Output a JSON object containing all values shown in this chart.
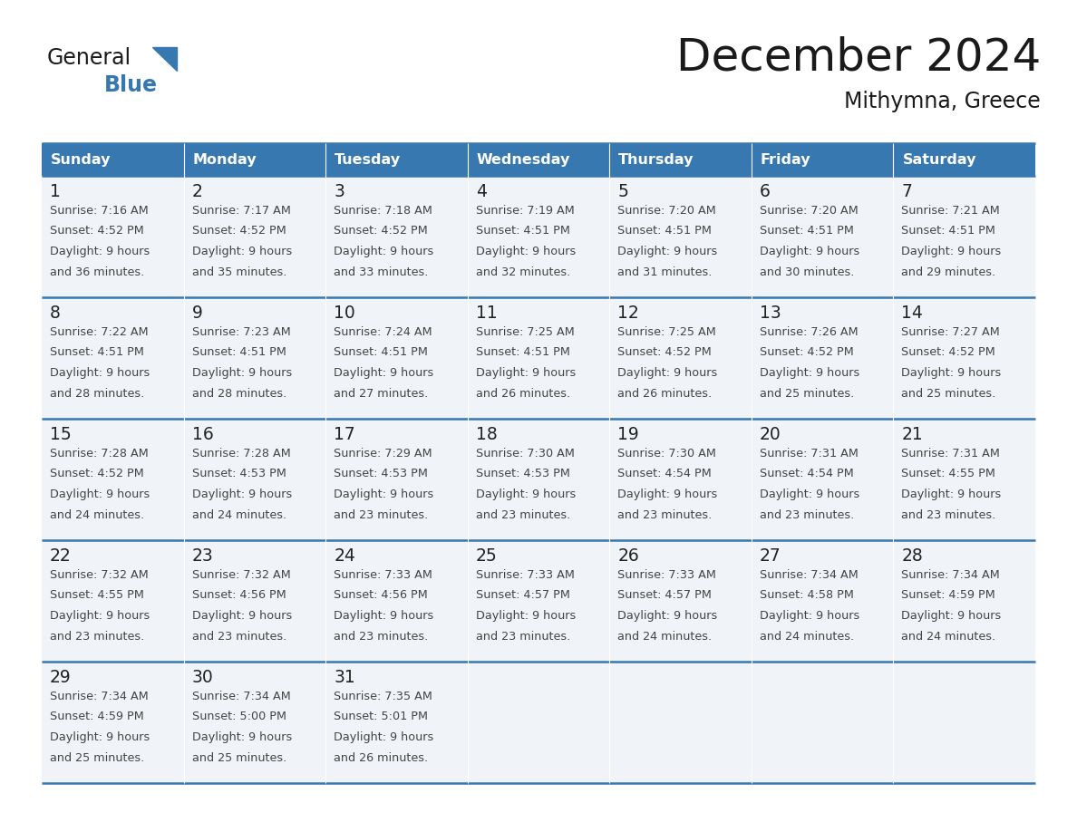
{
  "title": "December 2024",
  "subtitle": "Mithymna, Greece",
  "days_of_week": [
    "Sunday",
    "Monday",
    "Tuesday",
    "Wednesday",
    "Thursday",
    "Friday",
    "Saturday"
  ],
  "header_bg_color": "#3778b0",
  "header_text_color": "#ffffff",
  "cell_bg_color": "#f0f3f7",
  "grid_line_color": "#3778b0",
  "title_color": "#1a1a1a",
  "cell_text_color": "#444444",
  "day_num_color": "#222222",
  "logo_general_color": "#1a1a1a",
  "logo_blue_color": "#3778b0",
  "weeks": [
    [
      {
        "day": 1,
        "sunrise": "7:16 AM",
        "sunset": "4:52 PM",
        "daylight_suffix": "36 minutes."
      },
      {
        "day": 2,
        "sunrise": "7:17 AM",
        "sunset": "4:52 PM",
        "daylight_suffix": "35 minutes."
      },
      {
        "day": 3,
        "sunrise": "7:18 AM",
        "sunset": "4:52 PM",
        "daylight_suffix": "33 minutes."
      },
      {
        "day": 4,
        "sunrise": "7:19 AM",
        "sunset": "4:51 PM",
        "daylight_suffix": "32 minutes."
      },
      {
        "day": 5,
        "sunrise": "7:20 AM",
        "sunset": "4:51 PM",
        "daylight_suffix": "31 minutes."
      },
      {
        "day": 6,
        "sunrise": "7:20 AM",
        "sunset": "4:51 PM",
        "daylight_suffix": "30 minutes."
      },
      {
        "day": 7,
        "sunrise": "7:21 AM",
        "sunset": "4:51 PM",
        "daylight_suffix": "29 minutes."
      }
    ],
    [
      {
        "day": 8,
        "sunrise": "7:22 AM",
        "sunset": "4:51 PM",
        "daylight_suffix": "28 minutes."
      },
      {
        "day": 9,
        "sunrise": "7:23 AM",
        "sunset": "4:51 PM",
        "daylight_suffix": "28 minutes."
      },
      {
        "day": 10,
        "sunrise": "7:24 AM",
        "sunset": "4:51 PM",
        "daylight_suffix": "27 minutes."
      },
      {
        "day": 11,
        "sunrise": "7:25 AM",
        "sunset": "4:51 PM",
        "daylight_suffix": "26 minutes."
      },
      {
        "day": 12,
        "sunrise": "7:25 AM",
        "sunset": "4:52 PM",
        "daylight_suffix": "26 minutes."
      },
      {
        "day": 13,
        "sunrise": "7:26 AM",
        "sunset": "4:52 PM",
        "daylight_suffix": "25 minutes."
      },
      {
        "day": 14,
        "sunrise": "7:27 AM",
        "sunset": "4:52 PM",
        "daylight_suffix": "25 minutes."
      }
    ],
    [
      {
        "day": 15,
        "sunrise": "7:28 AM",
        "sunset": "4:52 PM",
        "daylight_suffix": "24 minutes."
      },
      {
        "day": 16,
        "sunrise": "7:28 AM",
        "sunset": "4:53 PM",
        "daylight_suffix": "24 minutes."
      },
      {
        "day": 17,
        "sunrise": "7:29 AM",
        "sunset": "4:53 PM",
        "daylight_suffix": "23 minutes."
      },
      {
        "day": 18,
        "sunrise": "7:30 AM",
        "sunset": "4:53 PM",
        "daylight_suffix": "23 minutes."
      },
      {
        "day": 19,
        "sunrise": "7:30 AM",
        "sunset": "4:54 PM",
        "daylight_suffix": "23 minutes."
      },
      {
        "day": 20,
        "sunrise": "7:31 AM",
        "sunset": "4:54 PM",
        "daylight_suffix": "23 minutes."
      },
      {
        "day": 21,
        "sunrise": "7:31 AM",
        "sunset": "4:55 PM",
        "daylight_suffix": "23 minutes."
      }
    ],
    [
      {
        "day": 22,
        "sunrise": "7:32 AM",
        "sunset": "4:55 PM",
        "daylight_suffix": "23 minutes."
      },
      {
        "day": 23,
        "sunrise": "7:32 AM",
        "sunset": "4:56 PM",
        "daylight_suffix": "23 minutes."
      },
      {
        "day": 24,
        "sunrise": "7:33 AM",
        "sunset": "4:56 PM",
        "daylight_suffix": "23 minutes."
      },
      {
        "day": 25,
        "sunrise": "7:33 AM",
        "sunset": "4:57 PM",
        "daylight_suffix": "23 minutes."
      },
      {
        "day": 26,
        "sunrise": "7:33 AM",
        "sunset": "4:57 PM",
        "daylight_suffix": "24 minutes."
      },
      {
        "day": 27,
        "sunrise": "7:34 AM",
        "sunset": "4:58 PM",
        "daylight_suffix": "24 minutes."
      },
      {
        "day": 28,
        "sunrise": "7:34 AM",
        "sunset": "4:59 PM",
        "daylight_suffix": "24 minutes."
      }
    ],
    [
      {
        "day": 29,
        "sunrise": "7:34 AM",
        "sunset": "4:59 PM",
        "daylight_suffix": "25 minutes."
      },
      {
        "day": 30,
        "sunrise": "7:34 AM",
        "sunset": "5:00 PM",
        "daylight_suffix": "25 minutes."
      },
      {
        "day": 31,
        "sunrise": "7:35 AM",
        "sunset": "5:01 PM",
        "daylight_suffix": "26 minutes."
      },
      null,
      null,
      null,
      null
    ]
  ],
  "figsize": [
    11.88,
    9.18
  ],
  "dpi": 100
}
